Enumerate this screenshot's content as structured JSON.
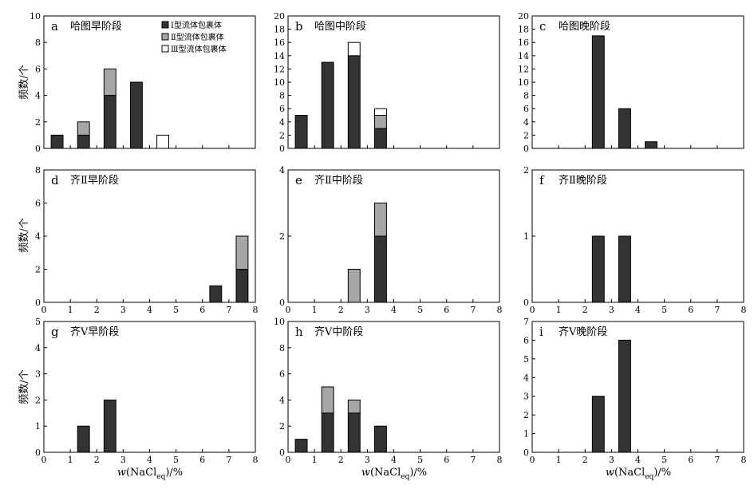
{
  "figure": {
    "ylabel": "频数/个",
    "xlabel_prefix": "w",
    "xlabel_chem": "(NaCl",
    "xlabel_sub": "eq",
    "xlabel_suffix": ")/%"
  },
  "legend": [
    {
      "label": "Ⅰ型流体包裹体",
      "color": "#333333"
    },
    {
      "label": "Ⅱ型流体包裹体",
      "color": "#a6a6a6"
    },
    {
      "label": "Ⅲ型流体包裹体",
      "color": "#ffffff"
    }
  ],
  "chart_data": [
    {
      "type": "bar",
      "stacked": true,
      "letter": "a",
      "title": "哈图早阶段",
      "x": [
        0.5,
        1.5,
        2.5,
        3.5,
        4.5
      ],
      "xlim": [
        0,
        8
      ],
      "ylim": [
        0,
        10
      ],
      "yticks": [
        0,
        2,
        4,
        6,
        8,
        10
      ],
      "series": [
        {
          "name": "Ⅰ型流体包裹体",
          "values": [
            1,
            1,
            4,
            5,
            0
          ]
        },
        {
          "name": "Ⅱ型流体包裹体",
          "values": [
            0,
            1,
            2,
            0,
            0
          ]
        },
        {
          "name": "Ⅲ型流体包裹体",
          "values": [
            0,
            0,
            0,
            0,
            1
          ]
        }
      ]
    },
    {
      "type": "bar",
      "stacked": true,
      "letter": "b",
      "title": "哈图中阶段",
      "x": [
        0.5,
        1.5,
        2.5,
        3.5
      ],
      "xlim": [
        0,
        8
      ],
      "ylim": [
        0,
        20
      ],
      "yticks": [
        0,
        2,
        4,
        6,
        8,
        10,
        12,
        14,
        16,
        18,
        20
      ],
      "series": [
        {
          "name": "Ⅰ型流体包裹体",
          "values": [
            5,
            13,
            14,
            3
          ]
        },
        {
          "name": "Ⅱ型流体包裹体",
          "values": [
            0,
            0,
            0,
            2
          ]
        },
        {
          "name": "Ⅲ型流体包裹体",
          "values": [
            0,
            0,
            2,
            1
          ]
        }
      ]
    },
    {
      "type": "bar",
      "stacked": true,
      "letter": "c",
      "title": "哈图晚阶段",
      "x": [
        2.5,
        3.5,
        4.5
      ],
      "xlim": [
        0,
        8
      ],
      "ylim": [
        0,
        20
      ],
      "yticks": [
        0,
        2,
        4,
        6,
        8,
        10,
        12,
        14,
        16,
        18,
        20
      ],
      "series": [
        {
          "name": "Ⅰ型流体包裹体",
          "values": [
            17,
            6,
            1
          ]
        }
      ]
    },
    {
      "type": "bar",
      "stacked": true,
      "letter": "d",
      "title": "齐Ⅱ早阶段",
      "x": [
        6.5,
        7.5
      ],
      "xlim": [
        0,
        8
      ],
      "ylim": [
        0,
        8
      ],
      "yticks": [
        0,
        2,
        4,
        6,
        8
      ],
      "series": [
        {
          "name": "Ⅰ型流体包裹体",
          "values": [
            1,
            2
          ]
        },
        {
          "name": "Ⅱ型流体包裹体",
          "values": [
            0,
            2
          ]
        }
      ]
    },
    {
      "type": "bar",
      "stacked": true,
      "letter": "e",
      "title": "齐Ⅱ中阶段",
      "x": [
        2.5,
        3.5
      ],
      "xlim": [
        0,
        8
      ],
      "ylim": [
        0,
        4
      ],
      "yticks": [
        0,
        2,
        4
      ],
      "series": [
        {
          "name": "Ⅰ型流体包裹体",
          "values": [
            0,
            2
          ]
        },
        {
          "name": "Ⅱ型流体包裹体",
          "values": [
            1,
            1
          ]
        }
      ]
    },
    {
      "type": "bar",
      "stacked": true,
      "letter": "f",
      "title": "齐Ⅱ晚阶段",
      "x": [
        2.5,
        3.5
      ],
      "xlim": [
        0,
        8
      ],
      "ylim": [
        0,
        2
      ],
      "yticks": [
        0,
        1,
        2
      ],
      "series": [
        {
          "name": "Ⅰ型流体包裹体",
          "values": [
            1,
            1
          ]
        }
      ]
    },
    {
      "type": "bar",
      "stacked": true,
      "letter": "g",
      "title": "齐Ⅴ早阶段",
      "x": [
        1.5,
        2.5
      ],
      "xlim": [
        0,
        8
      ],
      "ylim": [
        0,
        5
      ],
      "yticks": [
        0,
        1,
        2,
        3,
        4,
        5
      ],
      "series": [
        {
          "name": "Ⅰ型流体包裹体",
          "values": [
            1,
            2
          ]
        }
      ]
    },
    {
      "type": "bar",
      "stacked": true,
      "letter": "h",
      "title": "齐Ⅴ中阶段",
      "x": [
        0.5,
        1.5,
        2.5,
        3.5
      ],
      "xlim": [
        0,
        8
      ],
      "ylim": [
        0,
        10
      ],
      "yticks": [
        0,
        2,
        4,
        6,
        8,
        10
      ],
      "series": [
        {
          "name": "Ⅰ型流体包裹体",
          "values": [
            1,
            3,
            3,
            2
          ]
        },
        {
          "name": "Ⅱ型流体包裹体",
          "values": [
            0,
            2,
            1,
            0
          ]
        }
      ]
    },
    {
      "type": "bar",
      "stacked": true,
      "letter": "i",
      "title": "齐Ⅴ晚阶段",
      "x": [
        2.5,
        3.5
      ],
      "xlim": [
        0,
        8
      ],
      "ylim": [
        0,
        7
      ],
      "yticks": [
        0,
        1,
        2,
        3,
        4,
        5,
        6,
        7
      ],
      "series": [
        {
          "name": "Ⅰ型流体包裹体",
          "values": [
            3,
            6
          ]
        }
      ]
    }
  ]
}
